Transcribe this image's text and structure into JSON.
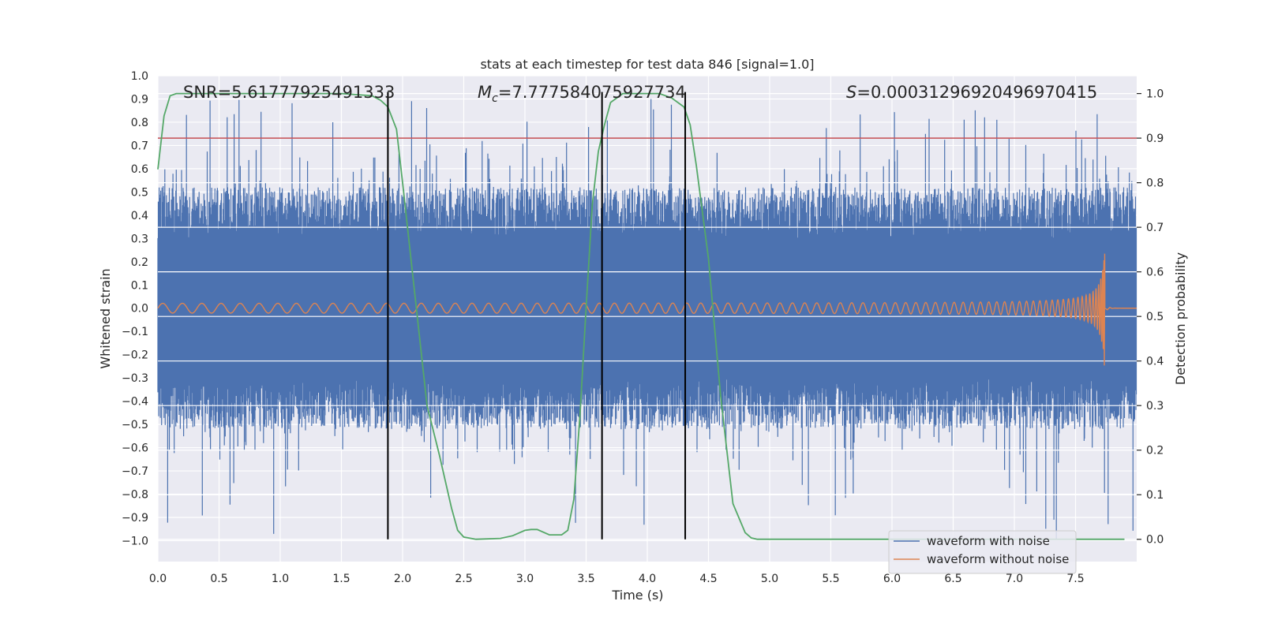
{
  "chart_data": {
    "type": "line",
    "title": "stats at each timestep for test data 846 [signal=1.0]",
    "xlabel": "Time (s)",
    "ylabel": "Whitened strain",
    "y2label": "Detection probability",
    "xlim": [
      0.0,
      8.0
    ],
    "ylim": [
      -1.09,
      1.0
    ],
    "y2lim": [
      -0.05,
      1.04
    ],
    "xticks": [
      "0.0",
      "0.5",
      "1.0",
      "1.5",
      "2.0",
      "2.5",
      "3.0",
      "3.5",
      "4.0",
      "4.5",
      "5.0",
      "5.5",
      "6.0",
      "6.5",
      "7.0",
      "7.5"
    ],
    "yticks": [
      "1.0",
      "0.9",
      "0.8",
      "0.7",
      "0.6",
      "0.5",
      "0.4",
      "0.3",
      "0.2",
      "0.1",
      "0.0",
      "−0.1",
      "−0.2",
      "−0.3",
      "−0.4",
      "−0.5",
      "−0.6",
      "−0.7",
      "−0.8",
      "−0.9",
      "−1.0"
    ],
    "y2ticks": [
      "1.0",
      "0.9",
      "0.8",
      "0.7",
      "0.6",
      "0.5",
      "0.4",
      "0.3",
      "0.2",
      "0.1",
      "0.0"
    ],
    "annotations": {
      "snr": "SNR=5.61777925491333",
      "mc_symbol": "M",
      "mc_sub": "c",
      "mc_value": "=7.777584075927734",
      "s_symbol": "S",
      "s_value": "=0.00031296920496970415"
    },
    "threshold": 0.9,
    "vlines": [
      1.88,
      3.63,
      4.31
    ],
    "series": [
      {
        "name": "waveform with noise",
        "color": "#4c72b0",
        "envelope": {
          "core_upper": 0.3,
          "core_lower": -0.3,
          "peak_upper": 0.9,
          "peak_lower": -1.0
        }
      },
      {
        "name": "waveform without noise",
        "color": "#dd8452",
        "chirp": {
          "t_start": 0.0,
          "t_merger": 7.74,
          "amp_start": 0.02,
          "amp_peak": 0.3
        }
      },
      {
        "name": "detection probability",
        "color": "#55a868",
        "axis": "right",
        "x": [
          0.0,
          0.05,
          0.1,
          0.15,
          0.2,
          0.4,
          1.0,
          1.5,
          1.75,
          1.82,
          1.88,
          1.95,
          2.0,
          2.1,
          2.2,
          2.3,
          2.4,
          2.45,
          2.5,
          2.6,
          2.8,
          2.9,
          3.0,
          3.05,
          3.1,
          3.2,
          3.3,
          3.35,
          3.4,
          3.45,
          3.5,
          3.55,
          3.6,
          3.65,
          3.7,
          3.8,
          3.9,
          4.1,
          4.2,
          4.3,
          4.35,
          4.4,
          4.5,
          4.6,
          4.7,
          4.8,
          4.85,
          4.9,
          5.0,
          5.5,
          6.0,
          7.0,
          7.9
        ],
        "y": [
          0.83,
          0.95,
          0.995,
          1.0,
          1.0,
          1.0,
          1.0,
          1.0,
          0.995,
          0.985,
          0.97,
          0.92,
          0.8,
          0.55,
          0.3,
          0.19,
          0.07,
          0.02,
          0.005,
          0.0,
          0.002,
          0.008,
          0.02,
          0.022,
          0.022,
          0.01,
          0.01,
          0.02,
          0.09,
          0.28,
          0.52,
          0.75,
          0.87,
          0.93,
          0.98,
          1.0,
          1.0,
          1.0,
          0.99,
          0.97,
          0.93,
          0.84,
          0.63,
          0.32,
          0.08,
          0.015,
          0.003,
          0.0,
          0.0,
          0.0,
          0.0,
          0.0,
          0.0
        ]
      }
    ],
    "legend": {
      "position": "lower-right",
      "entries": [
        "waveform with noise",
        "waveform without noise"
      ]
    }
  }
}
